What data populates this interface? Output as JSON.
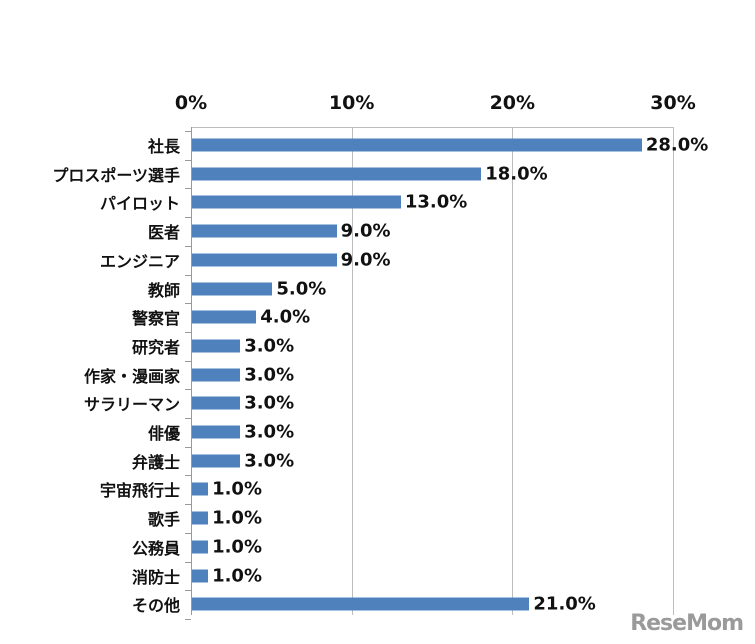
{
  "chart_data": {
    "type": "bar",
    "orientation": "horizontal",
    "title": "",
    "xlabel": "",
    "ylabel": "",
    "xlim": [
      0,
      30
    ],
    "x_ticks": [
      "0%",
      "10%",
      "20%",
      "30%"
    ],
    "x_axis_position": "top",
    "grid": true,
    "legend": null,
    "bar_color": "#4f81bd",
    "categories": [
      "社長",
      "プロスポーツ選手",
      "パイロット",
      "医者",
      "エンジニア",
      "教師",
      "警察官",
      "研究者",
      "作家・漫画家",
      "サラリーマン",
      "俳優",
      "弁護士",
      "宇宙飛行士",
      "歌手",
      "公務員",
      "消防士",
      "その他"
    ],
    "values": [
      28.0,
      18.0,
      13.0,
      9.0,
      9.0,
      5.0,
      4.0,
      3.0,
      3.0,
      3.0,
      3.0,
      3.0,
      1.0,
      1.0,
      1.0,
      1.0,
      21.0
    ],
    "value_labels": [
      "28.0%",
      "18.0%",
      "13.0%",
      "9.0%",
      "9.0%",
      "5.0%",
      "4.0%",
      "3.0%",
      "3.0%",
      "3.0%",
      "3.0%",
      "3.0%",
      "1.0%",
      "1.0%",
      "1.0%",
      "1.0%",
      "21.0%"
    ]
  },
  "watermark": "ReseMom"
}
